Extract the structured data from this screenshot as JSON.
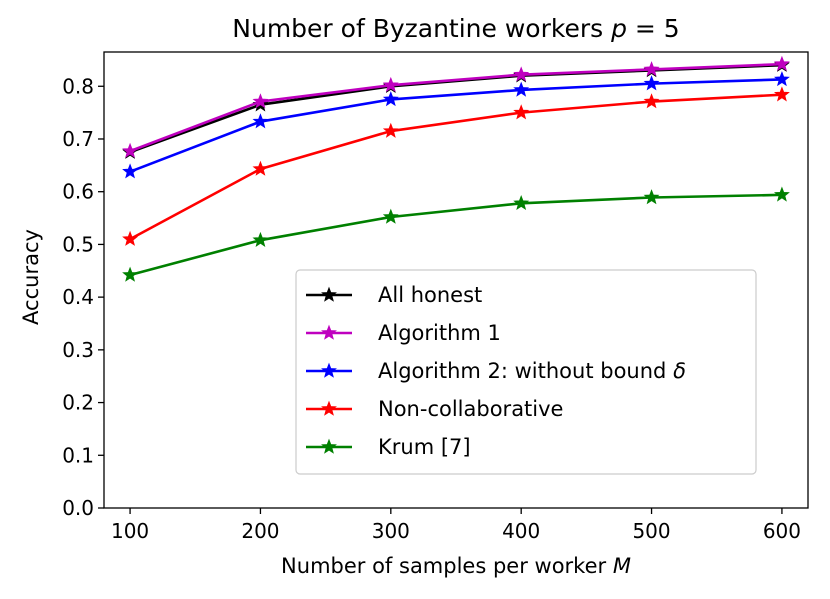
{
  "chart_data": {
    "type": "line",
    "title": "Number of Byzantine workers p = 5",
    "xlabel": "Number of samples per worker M",
    "ylabel": "Accuracy",
    "x": [
      100,
      200,
      300,
      400,
      500,
      600
    ],
    "xlim": [
      80,
      620
    ],
    "ylim": [
      0.0,
      0.865
    ],
    "xticks": [
      100,
      200,
      300,
      400,
      500,
      600
    ],
    "yticks": [
      0.0,
      0.1,
      0.2,
      0.3,
      0.4,
      0.5,
      0.6,
      0.7,
      0.8
    ],
    "grid": false,
    "legend_position": "lower-center",
    "series": [
      {
        "name": "All honest",
        "color": "#000000",
        "values": [
          0.675,
          0.765,
          0.8,
          0.82,
          0.83,
          0.84
        ]
      },
      {
        "name": "Algorithm 1",
        "color": "#bf00bf",
        "values": [
          0.677,
          0.771,
          0.802,
          0.822,
          0.832,
          0.842
        ]
      },
      {
        "name": "Algorithm 2: without bound δ",
        "color": "#0000ff",
        "values": [
          0.638,
          0.733,
          0.775,
          0.793,
          0.805,
          0.813
        ]
      },
      {
        "name": "Non-collaborative",
        "color": "#ff0000",
        "values": [
          0.51,
          0.643,
          0.715,
          0.75,
          0.771,
          0.784
        ]
      },
      {
        "name": "Krum [7]",
        "color": "#008000",
        "values": [
          0.442,
          0.508,
          0.552,
          0.578,
          0.589,
          0.594
        ]
      }
    ]
  }
}
